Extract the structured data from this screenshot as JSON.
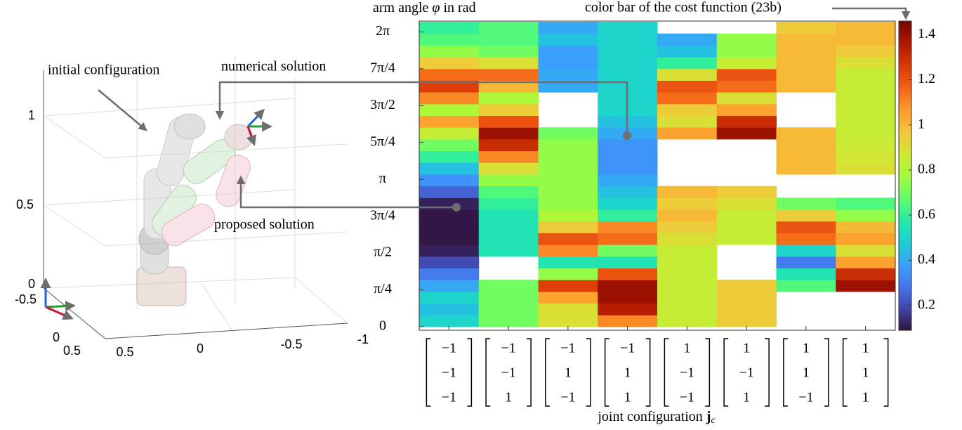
{
  "chart_data": {
    "type": "heatmap",
    "y_label": {
      "text": "arm angle",
      "symbol": "φ",
      "unit": "in rad"
    },
    "x_label": {
      "text": "joint configuration",
      "symbol": "j",
      "subscript": "c"
    },
    "colorbar_label": "color bar of the cost function (23b)",
    "colormap": "turbo",
    "clim": [
      0.09,
      1.46
    ],
    "cticks": [
      0.2,
      0.4,
      0.6,
      0.8,
      1,
      1.2,
      1.4
    ],
    "ylim": [
      0,
      6.5
    ],
    "yticks": [
      0,
      {
        "value": 0.7854,
        "label": "π/4"
      },
      {
        "value": 1.5708,
        "label": "π/2"
      },
      {
        "value": 2.3562,
        "label": "3π/4"
      },
      {
        "value": 3.1416,
        "label": "π"
      },
      {
        "value": 3.927,
        "label": "5π/4"
      },
      {
        "value": 4.7124,
        "label": "3π/2"
      },
      {
        "value": 5.4978,
        "label": "7π/4"
      },
      {
        "value": 6.2832,
        "label": "2π"
      }
    ],
    "bins": [
      0,
      0.25,
      0.5,
      0.75,
      1,
      1.25,
      1.5,
      1.75,
      2,
      2.25,
      2.5,
      2.75,
      3,
      3.25,
      3.5,
      3.75,
      4,
      4.25,
      4.5,
      4.75,
      5,
      5.25,
      5.5,
      5.75,
      6,
      6.25,
      6.5
    ],
    "categories": [
      [
        "−1",
        "−1",
        "−1"
      ],
      [
        "−1",
        "−1",
        "1"
      ],
      [
        "−1",
        "1",
        "−1"
      ],
      [
        "−1",
        "1",
        "1"
      ],
      [
        "1",
        "−1",
        "−1"
      ],
      [
        "1",
        "−1",
        "1"
      ],
      [
        "1",
        "1",
        "−1"
      ],
      [
        "1",
        "1",
        "1"
      ]
    ],
    "values": [
      [
        0.5,
        0.45,
        0.5,
        0.4,
        0.3,
        0.2,
        0.12,
        0.1,
        0.1,
        0.1,
        0.12,
        0.25,
        0.35,
        0.45,
        0.6,
        0.7,
        0.85,
        1.05,
        0.8,
        1.1,
        1.25,
        1.15,
        0.95,
        0.75,
        0.65,
        0.6
      ],
      [
        0.7,
        0.7,
        0.7,
        0.7,
        null,
        null,
        0.55,
        0.55,
        0.55,
        0.55,
        0.6,
        0.65,
        0.75,
        0.9,
        1.1,
        1.3,
        1.4,
        1.2,
        0.95,
        0.8,
        1.0,
        1.15,
        0.9,
        0.7,
        0.65,
        0.65
      ],
      [
        0.9,
        0.9,
        1.05,
        1.25,
        0.75,
        0.55,
        1.1,
        1.2,
        0.95,
        0.8,
        0.75,
        0.75,
        0.75,
        0.75,
        0.75,
        0.75,
        0.7,
        null,
        null,
        null,
        0.4,
        0.4,
        0.38,
        0.38,
        0.45,
        0.4
      ],
      [
        1.1,
        1.35,
        1.4,
        1.4,
        1.2,
        0.55,
        0.7,
        1.15,
        1.1,
        0.6,
        0.5,
        0.45,
        0.4,
        0.35,
        0.35,
        0.35,
        0.4,
        0.45,
        0.5,
        0.5,
        0.5,
        0.5,
        0.5,
        0.5,
        0.5,
        0.5
      ],
      [
        0.85,
        0.85,
        0.85,
        0.85,
        0.85,
        0.85,
        0.85,
        0.9,
        0.95,
        1.0,
        0.95,
        1.0,
        null,
        null,
        null,
        null,
        1.05,
        0.9,
        0.95,
        1.15,
        1.2,
        0.9,
        0.6,
        0.45,
        0.4,
        null
      ],
      [
        0.95,
        0.95,
        0.95,
        0.95,
        null,
        null,
        null,
        0.85,
        0.85,
        0.85,
        0.9,
        0.95,
        null,
        null,
        null,
        null,
        1.4,
        1.3,
        1.05,
        0.9,
        1.15,
        1.2,
        0.85,
        0.75,
        0.75,
        null
      ],
      [
        null,
        null,
        null,
        0.65,
        0.55,
        0.3,
        0.5,
        1.15,
        1.2,
        0.95,
        0.7,
        null,
        null,
        1.0,
        1.0,
        1.0,
        1.0,
        null,
        null,
        null,
        1.0,
        1.0,
        1.0,
        1.0,
        1.0,
        0.95
      ],
      [
        null,
        null,
        null,
        1.4,
        1.3,
        1.05,
        0.9,
        1.05,
        1.0,
        0.75,
        0.65,
        null,
        null,
        0.9,
        0.88,
        0.86,
        0.85,
        0.85,
        0.85,
        0.85,
        0.85,
        0.85,
        0.9,
        0.95,
        1.0,
        1.0
      ]
    ]
  },
  "robot_plot": {
    "annotations": {
      "initial": "initial configuration",
      "numerical": "numerical solution",
      "proposed": "proposed solution"
    },
    "zticks": [
      1,
      0.5,
      0
    ],
    "yticks": [
      -0.5,
      0,
      0.5
    ],
    "xticks": [
      0.5,
      0,
      -0.5,
      -1
    ]
  }
}
